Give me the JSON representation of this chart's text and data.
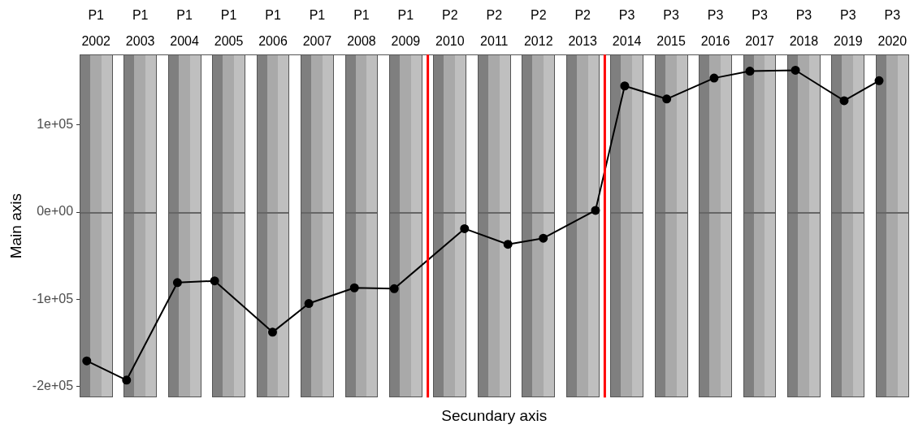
{
  "chart_data": {
    "type": "line",
    "xlabel": "Secundary axis",
    "ylabel": "Main axis",
    "x": [
      2001.79,
      2002.69,
      2003.84,
      2004.68,
      2005.99,
      2006.81,
      2007.84,
      2008.74,
      2010.33,
      2011.31,
      2012.11,
      2013.29,
      2013.95,
      2014.9,
      2015.97,
      2016.78,
      2017.81,
      2018.91,
      2019.7
    ],
    "series": [
      {
        "color": "#000000",
        "values": [
          -171000,
          -193000,
          -81000,
          -79000,
          -138000,
          -105000,
          -87000,
          -88000,
          -19000,
          -37000,
          -30000,
          2000,
          145000,
          130000,
          154000,
          162000,
          163000,
          128000,
          151000
        ]
      }
    ],
    "xlim": [
      2001.63,
      2020.37
    ],
    "xticks": [
      2002,
      2003,
      2004,
      2005,
      2006,
      2007,
      2008,
      2009,
      2010,
      2011,
      2012,
      2013,
      2014,
      2015,
      2016,
      2017,
      2018,
      2019,
      2020
    ],
    "ylim": [
      -213000,
      181000
    ],
    "yticks": [
      {
        "value": -200000,
        "label": "-2e+05"
      },
      {
        "value": -100000,
        "label": "-1e+05"
      },
      {
        "value": 0,
        "label": "0e+00"
      },
      {
        "value": 100000,
        "label": "1e+05"
      }
    ],
    "annotations": [
      "P1",
      "P1",
      "P1",
      "P1",
      "P1",
      "P1",
      "P1",
      "P1",
      "P2",
      "P2",
      "P2",
      "P2",
      "P3",
      "P3",
      "P3",
      "P3",
      "P3",
      "P3",
      "P3"
    ],
    "legend": false,
    "grid": false,
    "ref_lines": [
      {
        "axis": "x",
        "value": 2009.5,
        "color": "#ff0000"
      },
      {
        "axis": "x",
        "value": 2013.5,
        "color": "#ff0000"
      }
    ],
    "marker": "circle",
    "line_style": "solid"
  }
}
